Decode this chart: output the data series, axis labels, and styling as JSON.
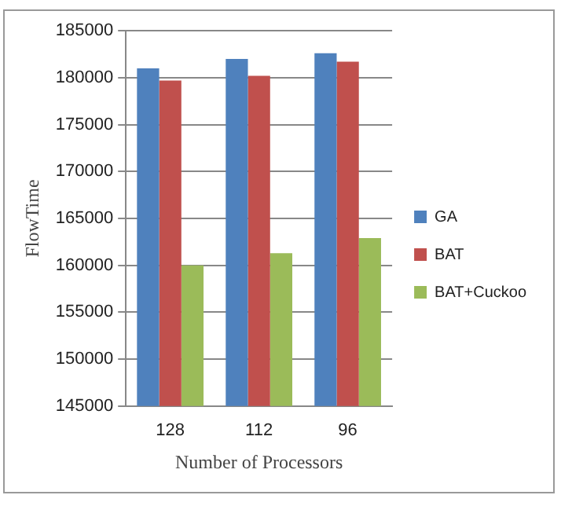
{
  "chart_data": {
    "type": "bar",
    "xlabel": "Number of Processors",
    "ylabel": "FlowTime",
    "categories": [
      "128",
      "112",
      "96"
    ],
    "series": [
      {
        "name": "GA",
        "color": "#4f81bd",
        "values": [
          181000,
          182000,
          182600
        ]
      },
      {
        "name": "BAT",
        "color": "#c0504d",
        "values": [
          179700,
          180200,
          181700
        ]
      },
      {
        "name": "BAT+Cuckoo",
        "color": "#9bbb59",
        "values": [
          160000,
          161300,
          162900
        ]
      }
    ],
    "ylim": [
      145000,
      185000
    ],
    "yticks": [
      145000,
      150000,
      155000,
      160000,
      165000,
      170000,
      175000,
      180000,
      185000
    ],
    "grid": "y",
    "legend": "right"
  }
}
